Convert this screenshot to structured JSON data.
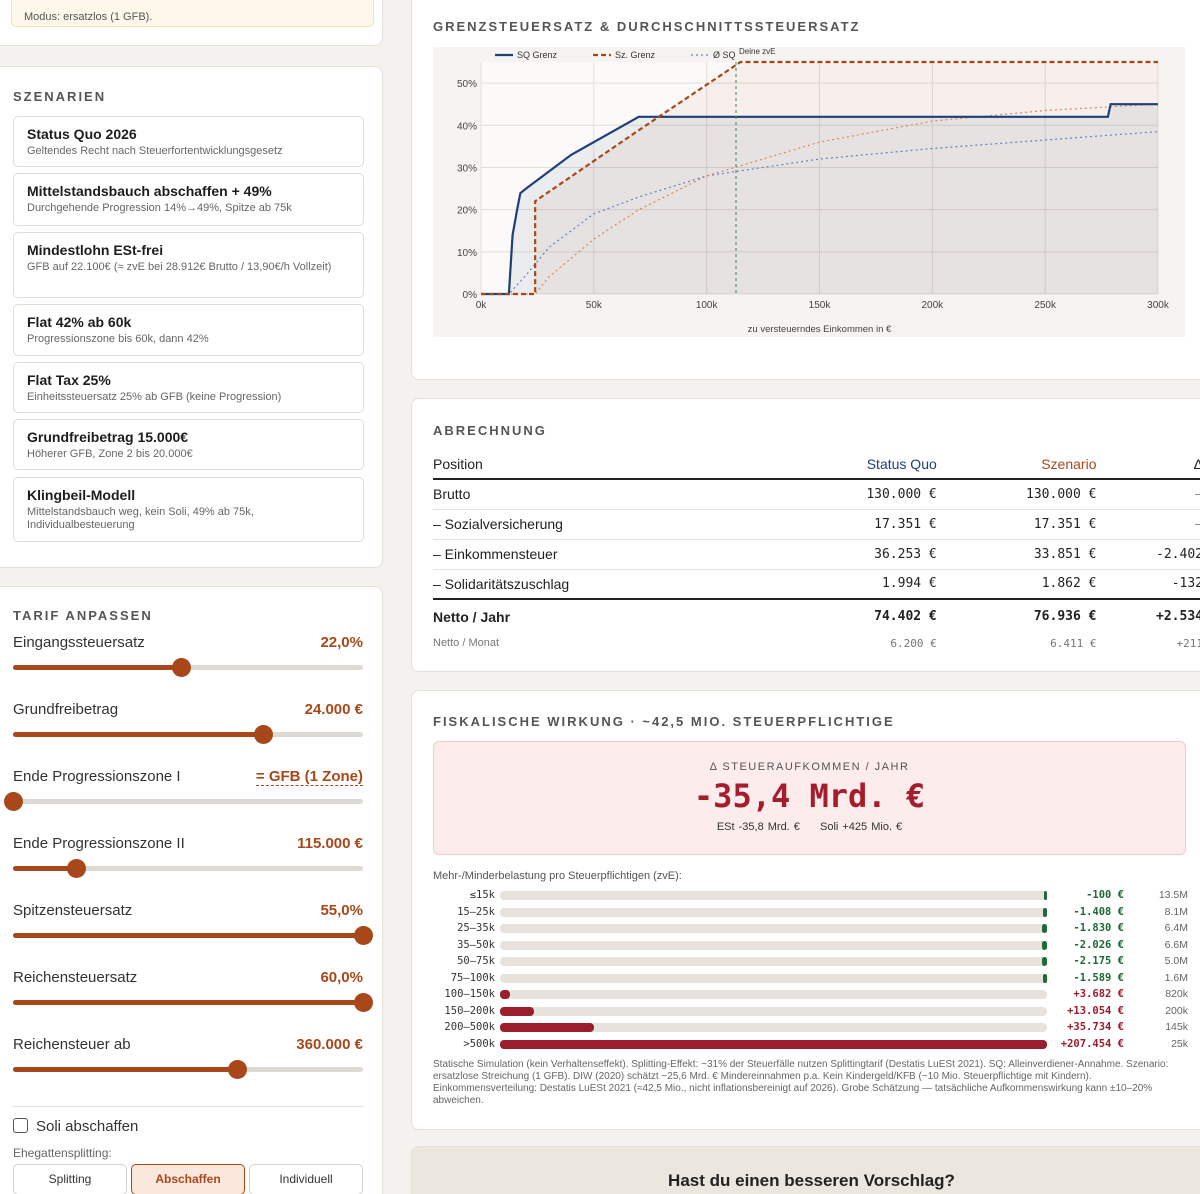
{
  "top_note": "Modus: ersatzlos (1 GFB).",
  "scenarios": {
    "title": "SZENARIEN",
    "items": [
      {
        "title": "Status Quo 2026",
        "desc": "Geltendes Recht nach Steuerfortentwicklungsgesetz"
      },
      {
        "title": "Mittelstandsbauch abschaffen + 49%",
        "desc": "Durchgehende Progression 14%→49%, Spitze ab 75k"
      },
      {
        "title": "Mindestlohn ESt-frei",
        "desc": "GFB auf 22.100€ (≈ zvE bei 28.912€ Brutto / 13,90€/h Vollzeit)"
      },
      {
        "title": "Flat 42% ab 60k",
        "desc": "Progressionszone bis 60k, dann 42%"
      },
      {
        "title": "Flat Tax 25%",
        "desc": "Einheitssteuersatz 25% ab GFB (keine Progression)"
      },
      {
        "title": "Grundfreibetrag 15.000€",
        "desc": "Höherer GFB, Zone 2 bis 20.000€"
      },
      {
        "title": "Klingbeil-Modell",
        "desc": "Mittelstandsbauch weg, kein Soli, 49% ab 75k, Individualbesteuerung"
      }
    ]
  },
  "tarif": {
    "title": "TARIF ANPASSEN",
    "sliders": [
      {
        "label": "Eingangssteuersatz",
        "value": "22,0%",
        "level": 0.48
      },
      {
        "label": "Grundfreibetrag",
        "value": "24.000 €",
        "level": 0.715
      },
      {
        "label": "Ende Progressionszone I",
        "value": "= GFB (1 Zone)",
        "level": 0.0
      },
      {
        "label": "Ende Progressionszone II",
        "value": "115.000 €",
        "level": 0.18
      },
      {
        "label": "Spitzensteuersatz",
        "value": "55,0%",
        "level": 1.0
      },
      {
        "label": "Reichensteuersatz",
        "value": "60,0%",
        "level": 1.0
      },
      {
        "label": "Reichensteuer ab",
        "value": "360.000 €",
        "level": 0.64
      }
    ],
    "soli_label": "Soli abschaffen",
    "splitting_label": "Ehegattensplitting:",
    "splitting_options": [
      "Splitting",
      "Abschaffen",
      "Individuell"
    ],
    "splitting_selected": "Abschaffen"
  },
  "chart": {
    "title": "GRENZSTEUERSATZ & DURCHSCHNITTSSTEUERSATZ",
    "xlabel": "zu versteuerndes Einkommen in €",
    "legend_overlap": "Deine zvE"
  },
  "chart_data": {
    "type": "line",
    "xlabel": "zu versteuerndes Einkommen in €",
    "xlim": [
      0,
      300000
    ],
    "ylim": [
      0,
      0.55
    ],
    "x_ticks": [
      "0k",
      "50k",
      "100k",
      "150k",
      "200k",
      "250k",
      "300k"
    ],
    "y_ticks": [
      "0%",
      "10%",
      "20%",
      "30%",
      "40%",
      "50%"
    ],
    "marker_x": 113000,
    "series": [
      {
        "name": "SQ Grenz",
        "color": "#1e3f78",
        "style": "solid",
        "x": [
          0,
          12350,
          14000,
          16000,
          17440,
          20000,
          40000,
          69900,
          100000,
          200000,
          277800,
          279000,
          300000
        ],
        "y": [
          0,
          0,
          0.14,
          0.2,
          0.239,
          0.25,
          0.33,
          0.42,
          0.42,
          0.42,
          0.42,
          0.45,
          0.45
        ]
      },
      {
        "name": "Sz. Grenz",
        "color": "#a8481a",
        "style": "dashed",
        "x": [
          0,
          24000,
          24000,
          69000,
          115000,
          200000,
          300000
        ],
        "y": [
          0,
          0,
          0.22,
          0.385,
          0.55,
          0.55,
          0.55
        ]
      },
      {
        "name": "Ø SQ",
        "color": "#5b84c4",
        "style": "dotted",
        "x": [
          0,
          12350,
          20000,
          30000,
          50000,
          70000,
          100000,
          150000,
          200000,
          250000,
          300000
        ],
        "y": [
          0,
          0,
          0.045,
          0.11,
          0.19,
          0.23,
          0.28,
          0.32,
          0.345,
          0.365,
          0.385
        ]
      },
      {
        "name": "Ø Sz",
        "color": "#d88a55",
        "style": "dotted",
        "x": [
          0,
          24000,
          30000,
          50000,
          70000,
          100000,
          150000,
          200000,
          250000,
          300000
        ],
        "y": [
          0,
          0,
          0.04,
          0.13,
          0.2,
          0.28,
          0.36,
          0.41,
          0.435,
          0.45
        ]
      }
    ]
  },
  "abrechnung": {
    "title": "ABRECHNUNG",
    "headers": [
      "Position",
      "Status Quo",
      "Szenario",
      "Δ"
    ],
    "rows": [
      {
        "pos": "Brutto",
        "sq": "130.000 €",
        "sz": "130.000 €",
        "d": "–"
      },
      {
        "pos": "– Sozialversicherung",
        "sq": "17.351 €",
        "sz": "17.351 €",
        "d": "–"
      },
      {
        "pos": "– Einkommensteuer",
        "sq": "36.253 €",
        "sz": "33.851 €",
        "d": "-2.402"
      },
      {
        "pos": "– Solidaritätszuschlag",
        "sq": "1.994 €",
        "sz": "1.862 €",
        "d": "-132"
      }
    ],
    "netto": {
      "pos": "Netto / Jahr",
      "sq": "74.402 €",
      "sz": "76.936 €",
      "d": "+2.534"
    },
    "monat": {
      "pos": "Netto / Monat",
      "sq": "6.200 €",
      "sz": "6.411 €",
      "d": "+211"
    }
  },
  "fiskal": {
    "title": "FISKALISCHE WIRKUNG · ~42,5 MIO. STEUERPFLICHTIGE",
    "impact_label": "Δ STEUERAUFKOMMEN / JAHR",
    "impact_value": "-35,4 Mrd. €",
    "est": "ESt -35,8 Mrd. €",
    "soli": "Soli +425 Mio. €",
    "dist_title": "Mehr-/Minderbelastung pro Steuerpflichtigen (zvE):",
    "rows": [
      {
        "cat": "≤15k",
        "amount": "-100 €",
        "count": "13.5M",
        "fill": 0.002,
        "dir": "neg"
      },
      {
        "cat": "15–25k",
        "amount": "-1.408 €",
        "count": "8.1M",
        "fill": 0.007,
        "dir": "neg"
      },
      {
        "cat": "25–35k",
        "amount": "-1.830 €",
        "count": "6.4M",
        "fill": 0.009,
        "dir": "neg"
      },
      {
        "cat": "35–50k",
        "amount": "-2.026 €",
        "count": "6.6M",
        "fill": 0.01,
        "dir": "neg"
      },
      {
        "cat": "50–75k",
        "amount": "-2.175 €",
        "count": "5.0M",
        "fill": 0.01,
        "dir": "neg"
      },
      {
        "cat": "75–100k",
        "amount": "-1.589 €",
        "count": "1.6M",
        "fill": 0.008,
        "dir": "neg"
      },
      {
        "cat": "100–150k",
        "amount": "+3.682 €",
        "count": "820k",
        "fill": 0.018,
        "dir": "pos"
      },
      {
        "cat": "150–200k",
        "amount": "+13.054 €",
        "count": "200k",
        "fill": 0.063,
        "dir": "pos"
      },
      {
        "cat": "200–500k",
        "amount": "+35.734 €",
        "count": "145k",
        "fill": 0.172,
        "dir": "pos"
      },
      {
        "cat": ">500k",
        "amount": "+207.454 €",
        "count": "25k",
        "fill": 1.0,
        "dir": "pos"
      }
    ],
    "footnote": "Statische Simulation (kein Verhaltenseffekt). Splitting-Effekt: ~31% der Steuerfälle nutzen Splittingtarif (Destatis LuESt 2021). SQ: Alleinverdiener-Annahme. Szenario: ersatzlose Streichung (1 GFB). DIW (2020) schätzt ~25,6 Mrd. € Mindereinnahmen p.a. Kein Kindergeld/KFB (~10 Mio. Steuerpflichtige mit Kindern). Einkommensverteilung: Destatis LuESt 2021 (≈42,5 Mio., nicht inflationsbereinigt auf 2026). Grobe Schätzung — tatsächliche Aufkommenswirkung kann ±10–20% abweichen."
  },
  "cta": "Hast du einen besseren Vorschlag?",
  "colors": {
    "accent": "#a8481a",
    "sq": "#1e3f78",
    "negative": "#1d6a34",
    "positive": "#9b1e2e"
  }
}
